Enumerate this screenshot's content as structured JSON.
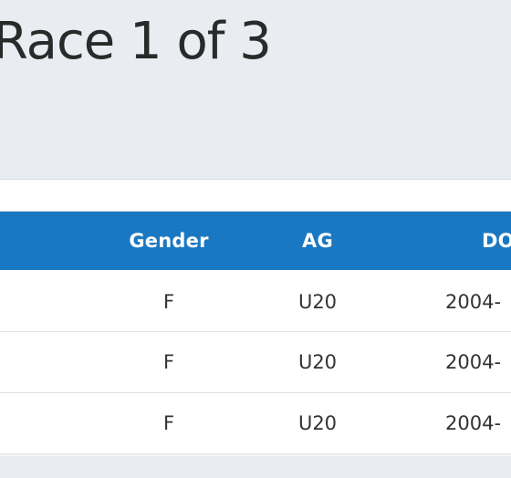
{
  "heading": "Race 1 of 3",
  "table": {
    "columns": {
      "gender": "Gender",
      "ag": "AG",
      "dob": "DO"
    },
    "rows": [
      {
        "gender": "F",
        "ag": "U20",
        "dob": "2004-"
      },
      {
        "gender": "F",
        "ag": "U20",
        "dob": "2004-"
      },
      {
        "gender": "F",
        "ag": "U20",
        "dob": "2004-"
      }
    ]
  },
  "colors": {
    "header_bg": "#1a78c2",
    "page_bg": "#e9edf2"
  }
}
